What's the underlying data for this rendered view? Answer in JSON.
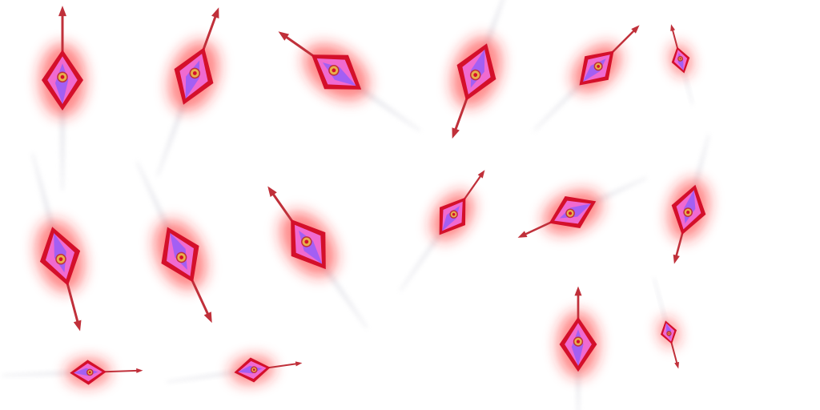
{
  "sprite_sheet": {
    "background": "#ffffff",
    "sprite_count": 16,
    "palette": {
      "glow": "#ff1a1a",
      "crystal_outer": "#d4102a",
      "crystal_inner": "#f06ad0",
      "crystal_core": "#8a5cff",
      "gem": "#e8b04a",
      "shaft": "#c0303a",
      "trail": "#e9e9ee"
    },
    "sprites": [
      {
        "name": "crystal-spear-frame-1",
        "icon": "crystal-spear-icon"
      },
      {
        "name": "crystal-spear-frame-2",
        "icon": "crystal-spear-icon"
      },
      {
        "name": "crystal-spear-frame-3",
        "icon": "crystal-spear-icon"
      },
      {
        "name": "crystal-spear-frame-4",
        "icon": "crystal-spear-icon"
      },
      {
        "name": "crystal-spear-frame-5",
        "icon": "crystal-spear-icon"
      },
      {
        "name": "crystal-spear-frame-6",
        "icon": "crystal-spear-icon"
      },
      {
        "name": "crystal-spear-frame-7",
        "icon": "crystal-spear-icon"
      },
      {
        "name": "crystal-spear-frame-8",
        "icon": "crystal-spear-icon"
      },
      {
        "name": "crystal-spear-frame-9",
        "icon": "crystal-spear-icon"
      },
      {
        "name": "crystal-spear-frame-10",
        "icon": "crystal-spear-icon"
      },
      {
        "name": "crystal-spear-frame-11",
        "icon": "crystal-spear-icon"
      },
      {
        "name": "crystal-spear-frame-12",
        "icon": "crystal-spear-icon"
      },
      {
        "name": "crystal-spear-frame-13",
        "icon": "crystal-spear-icon"
      },
      {
        "name": "crystal-spear-frame-14",
        "icon": "crystal-spear-icon"
      },
      {
        "name": "crystal-spear-frame-15",
        "icon": "crystal-spear-icon"
      },
      {
        "name": "crystal-spear-frame-16",
        "icon": "crystal-spear-icon"
      }
    ]
  }
}
